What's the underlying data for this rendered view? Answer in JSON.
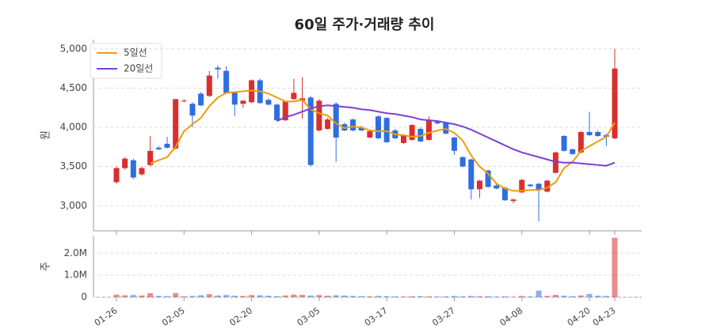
{
  "chart_data": [
    {
      "type": "candlestick",
      "title": "60일 주가·거래량 추이",
      "ylabel": "원",
      "up_color": "#d92f2f",
      "down_color": "#2f6ee0",
      "open": [
        3300,
        3480,
        3580,
        3400,
        3520,
        3740,
        3790,
        3730,
        4340,
        4300,
        4430,
        4400,
        4760,
        4720,
        4440,
        4300,
        4320,
        4600,
        4350,
        4290,
        4090,
        4360,
        4340,
        4380,
        3960,
        3980,
        4300,
        4040,
        4100,
        4000,
        3870,
        4140,
        4120,
        3960,
        3800,
        3840,
        3980,
        3840,
        4070,
        4060,
        3870,
        3620,
        3590,
        3210,
        3450,
        3260,
        3230,
        3060,
        3170,
        3270,
        3280,
        3180,
        3420,
        3890,
        3720,
        3680,
        3940,
        3940,
        3900,
        3860
      ],
      "high": [
        3500,
        3620,
        3600,
        3500,
        3890,
        3760,
        3880,
        4360,
        4360,
        4320,
        4450,
        4720,
        4790,
        4780,
        4460,
        4350,
        4610,
        4620,
        4370,
        4300,
        4340,
        4620,
        4640,
        4400,
        4360,
        4120,
        4320,
        4060,
        4110,
        4020,
        3960,
        4150,
        4130,
        3980,
        3910,
        4040,
        4000,
        4140,
        4090,
        4070,
        3880,
        3630,
        3600,
        3330,
        3460,
        3270,
        3240,
        3090,
        3340,
        3280,
        3290,
        3330,
        3690,
        3900,
        3730,
        3950,
        4200,
        3960,
        3920,
        5000
      ],
      "low": [
        3280,
        3460,
        3340,
        3380,
        3500,
        3710,
        3730,
        3720,
        4320,
        4000,
        4270,
        4390,
        4620,
        4430,
        4140,
        4250,
        4310,
        4300,
        4280,
        4080,
        4080,
        4350,
        4110,
        3500,
        3950,
        3970,
        3560,
        3950,
        3950,
        3950,
        3860,
        3850,
        3800,
        3850,
        3790,
        3830,
        3810,
        3830,
        4040,
        3910,
        3650,
        3490,
        3080,
        3100,
        3230,
        3210,
        3060,
        3030,
        3160,
        3240,
        2800,
        3170,
        3410,
        3690,
        3650,
        3670,
        3890,
        3880,
        3760,
        3850
      ],
      "close": [
        3480,
        3600,
        3360,
        3480,
        3700,
        3720,
        3740,
        4360,
        4340,
        4150,
        4280,
        4660,
        4740,
        4440,
        4290,
        4340,
        4600,
        4310,
        4290,
        4090,
        4330,
        4440,
        4370,
        3520,
        4340,
        4100,
        3870,
        3960,
        3960,
        3960,
        3950,
        3860,
        3810,
        3860,
        3900,
        4030,
        3820,
        4090,
        4050,
        3920,
        3700,
        3500,
        3210,
        3320,
        3240,
        3220,
        3070,
        3080,
        3330,
        3250,
        3200,
        3320,
        3680,
        3700,
        3660,
        3940,
        3900,
        3890,
        3880,
        4750
      ],
      "series": [
        {
          "name": "5일선",
          "color": "#f29b0a",
          "values": [
            null,
            null,
            null,
            null,
            3540,
            3580,
            3620,
            3750,
            3950,
            4040,
            4120,
            4270,
            4380,
            4440,
            4450,
            4460,
            4470,
            4460,
            4430,
            4380,
            4330,
            4330,
            4350,
            4230,
            4180,
            4150,
            4050,
            3990,
            4010,
            4000,
            3960,
            3950,
            3950,
            3910,
            3900,
            3880,
            3890,
            3930,
            3960,
            3980,
            3930,
            3830,
            3640,
            3500,
            3410,
            3280,
            3220,
            3190,
            3190,
            3200,
            3200,
            3230,
            3300,
            3480,
            3560,
            3700,
            3760,
            3820,
            3880,
            4060
          ]
        },
        {
          "name": "20일선",
          "color": "#7c3fd6",
          "values": [
            null,
            null,
            null,
            null,
            null,
            null,
            null,
            null,
            null,
            null,
            null,
            null,
            null,
            null,
            null,
            null,
            null,
            null,
            null,
            4080,
            4130,
            4160,
            4200,
            4240,
            4270,
            4280,
            4270,
            4260,
            4250,
            4230,
            4220,
            4200,
            4180,
            4170,
            4150,
            4130,
            4100,
            4090,
            4080,
            4060,
            4040,
            4010,
            3970,
            3920,
            3870,
            3820,
            3770,
            3720,
            3680,
            3650,
            3620,
            3590,
            3560,
            3550,
            3550,
            3540,
            3530,
            3520,
            3510,
            3550
          ]
        }
      ],
      "ylim": [
        2680,
        5120
      ],
      "yticks": [
        {
          "value": 3000,
          "label": "3,000"
        },
        {
          "value": 3500,
          "label": "3,500"
        },
        {
          "value": 4000,
          "label": "4,000"
        },
        {
          "value": 4500,
          "label": "4,500"
        },
        {
          "value": 5000,
          "label": "5,000"
        }
      ],
      "grid": true,
      "legend": "upper-left"
    },
    {
      "type": "bar",
      "ylabel": "주",
      "categories": [
        "01-26",
        null,
        null,
        null,
        null,
        null,
        null,
        null,
        "02-05",
        null,
        null,
        null,
        null,
        null,
        null,
        null,
        "02-20",
        null,
        null,
        null,
        null,
        null,
        null,
        null,
        "03-05",
        null,
        null,
        null,
        null,
        null,
        null,
        null,
        "03-17",
        null,
        null,
        null,
        null,
        null,
        null,
        null,
        "03-27",
        null,
        null,
        null,
        null,
        null,
        null,
        null,
        "04-08",
        null,
        null,
        null,
        null,
        null,
        null,
        null,
        "04-20",
        null,
        null,
        "04-23"
      ],
      "values": [
        120000,
        90000,
        100000,
        80000,
        180000,
        60000,
        50000,
        190000,
        40000,
        60000,
        90000,
        140000,
        80000,
        100000,
        70000,
        60000,
        100000,
        90000,
        70000,
        50000,
        80000,
        120000,
        110000,
        80000,
        100000,
        70000,
        90000,
        80000,
        60000,
        50000,
        40000,
        60000,
        50000,
        40000,
        30000,
        40000,
        50000,
        40000,
        30000,
        40000,
        60000,
        40000,
        60000,
        40000,
        50000,
        30000,
        40000,
        20000,
        60000,
        40000,
        300000,
        60000,
        110000,
        70000,
        50000,
        80000,
        150000,
        70000,
        60000,
        2700000
      ],
      "ylim": [
        0,
        2800000
      ],
      "yticks": [
        0,
        {
          "value": 1000000,
          "label": "1.0M"
        },
        {
          "value": 2000000,
          "label": "2.0M"
        }
      ],
      "grid": true
    }
  ]
}
